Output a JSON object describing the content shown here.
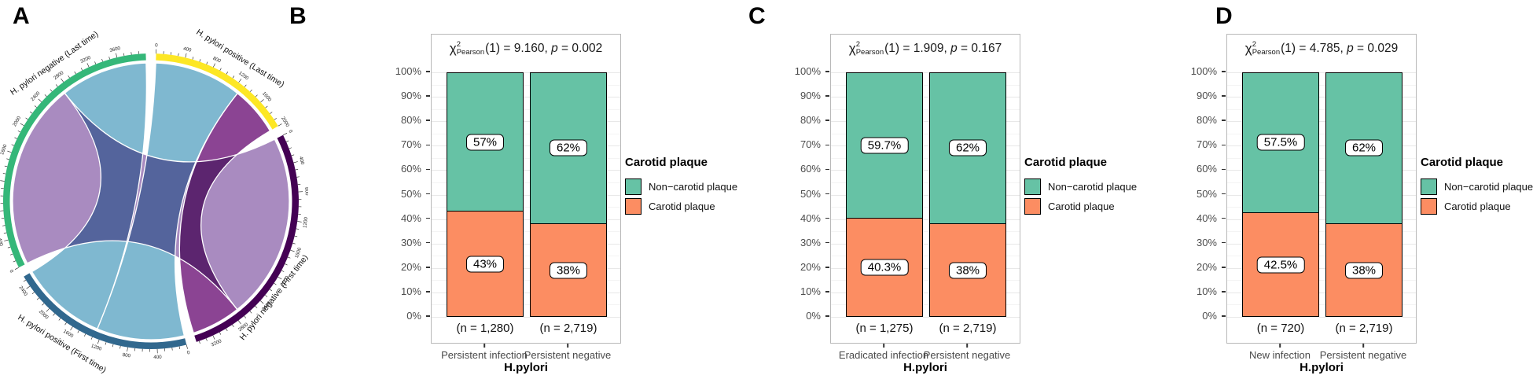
{
  "panels": {
    "a": "A",
    "b": "B",
    "c": "C",
    "d": "D"
  },
  "axis": {
    "y_ticks": [
      "0%",
      "10%",
      "20%",
      "30%",
      "40%",
      "50%",
      "60%",
      "70%",
      "80%",
      "90%",
      "100%"
    ],
    "x_title": "H.pylori"
  },
  "legend": {
    "title": "Carotid plaque",
    "items": [
      {
        "label": "Non−carotid plaque",
        "color": "#66C2A5"
      },
      {
        "label": "Carotid plaque",
        "color": "#FC8D62"
      }
    ]
  },
  "chart_data": [
    {
      "type": "chord",
      "panel": "A",
      "gap_deg": 4.0,
      "start_deg": 2.0,
      "unit_total": 11988,
      "sectors": [
        {
          "id": "pos_last",
          "label": "H. pylori positive (Last time)",
          "color": "#FDE725",
          "total": 2000,
          "tick_label_step": 400,
          "minor_tick_step": 100
        },
        {
          "id": "neg_first",
          "label": "H. pylori negative (First time)",
          "color": "#440154",
          "total": 3439,
          "tick_label_step": 400,
          "minor_tick_step": 100
        },
        {
          "id": "pos_first",
          "label": "H. pylori positive (First time)",
          "color": "#31688E",
          "total": 2555,
          "tick_label_step": 400,
          "minor_tick_step": 100
        },
        {
          "id": "neg_last",
          "label": "H. pylori negative (Last time)",
          "color": "#35B779",
          "total": 3994,
          "tick_label_step": 400,
          "minor_tick_step": 100
        }
      ],
      "flows": [
        {
          "name": "persistent-positive",
          "from": "pos_first",
          "from_start": 0,
          "to": "pos_last",
          "to_start": 0,
          "value": 1280,
          "color": "#7FB8D0"
        },
        {
          "name": "eradicated-infection",
          "from": "pos_first",
          "from_start": 1280,
          "to": "neg_last",
          "to_start": 2719,
          "value": 1275,
          "color": "#7FB8D0"
        },
        {
          "name": "persistent-negative",
          "from": "neg_first",
          "from_start": 0,
          "to": "neg_last",
          "to_start": 0,
          "value": 2719,
          "color": "#A98BC0"
        },
        {
          "name": "new-infection",
          "from": "neg_first",
          "from_start": 2719,
          "to": "pos_last",
          "to_start": 1280,
          "value": 720,
          "color": "#8B4493"
        }
      ]
    },
    {
      "type": "bar",
      "panel": "B",
      "title": "χ²Pearson(1) = 9.160, p = 0.002",
      "stat": {
        "chi": "χ",
        "sup": "2",
        "sub": "Pearson",
        "left": "(1) = 9.160, ",
        "p": "p",
        "right": " = 0.002"
      },
      "categories": [
        "Persistent infection",
        "Persistent negative"
      ],
      "n_labels": [
        "(n = 1,280)",
        "(n = 2,719)"
      ],
      "series": [
        {
          "name": "Non−carotid plaque",
          "values": [
            57,
            62
          ],
          "labels": [
            "57%",
            "62%"
          ]
        },
        {
          "name": "Carotid plaque",
          "values": [
            43,
            38
          ],
          "labels": [
            "43%",
            "38%"
          ]
        }
      ],
      "xlabel": "H.pylori",
      "ylim": [
        0,
        100
      ]
    },
    {
      "type": "bar",
      "panel": "C",
      "title": "χ²Pearson(1) = 1.909, p = 0.167",
      "stat": {
        "chi": "χ",
        "sup": "2",
        "sub": "Pearson",
        "left": "(1) = 1.909, ",
        "p": "p",
        "right": " = 0.167"
      },
      "categories": [
        "Eradicated infection",
        "Persistent negative"
      ],
      "n_labels": [
        "(n = 1,275)",
        "(n = 2,719)"
      ],
      "series": [
        {
          "name": "Non−carotid plaque",
          "values": [
            59.7,
            62
          ],
          "labels": [
            "59.7%",
            "62%"
          ]
        },
        {
          "name": "Carotid plaque",
          "values": [
            40.3,
            38
          ],
          "labels": [
            "40.3%",
            "38%"
          ]
        }
      ],
      "xlabel": "H.pylori",
      "ylim": [
        0,
        100
      ]
    },
    {
      "type": "bar",
      "panel": "D",
      "title": "χ²Pearson(1) = 4.785, p = 0.029",
      "stat": {
        "chi": "χ",
        "sup": "2",
        "sub": "Pearson",
        "left": "(1) = 4.785, ",
        "p": "p",
        "right": " = 0.029"
      },
      "categories": [
        "New infection",
        "Persistent negative"
      ],
      "n_labels": [
        "(n = 720)",
        "(n = 2,719)"
      ],
      "series": [
        {
          "name": "Non−carotid plaque",
          "values": [
            57.5,
            62
          ],
          "labels": [
            "57.5%",
            "62%"
          ]
        },
        {
          "name": "Carotid plaque",
          "values": [
            42.5,
            38
          ],
          "labels": [
            "42.5%",
            "38%"
          ]
        }
      ],
      "xlabel": "H.pylori",
      "ylim": [
        0,
        100
      ]
    }
  ]
}
